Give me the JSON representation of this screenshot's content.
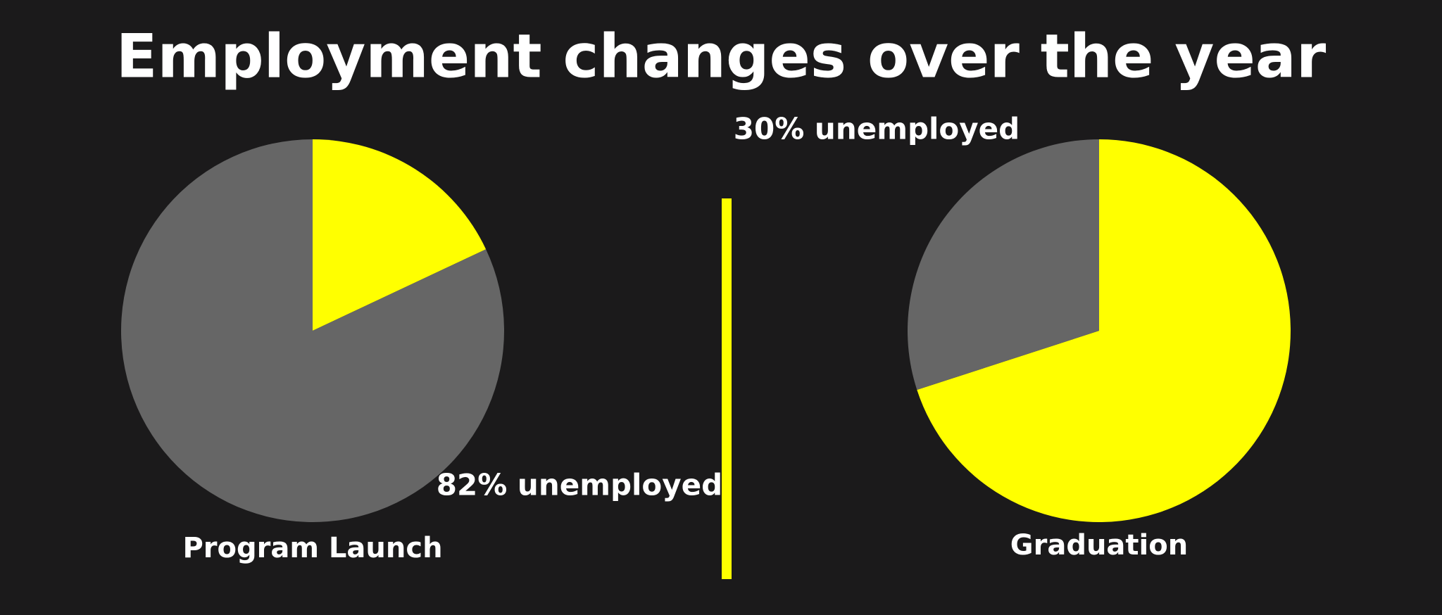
{
  "title": "Employment changes over the year",
  "chart_data": [
    {
      "type": "pie",
      "title": "Program Launch",
      "values": [
        18,
        82
      ],
      "value_labels": [
        null,
        "82% unemployed"
      ],
      "colors": [
        "#ffff00",
        "#666666"
      ]
    },
    {
      "type": "pie",
      "title": "Graduation",
      "values": [
        70,
        30
      ],
      "value_labels": [
        null,
        "30% unemployed"
      ],
      "colors": [
        "#ffff00",
        "#666666"
      ]
    }
  ]
}
